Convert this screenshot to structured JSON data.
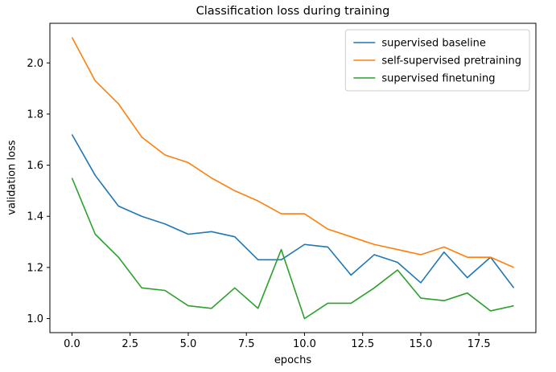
{
  "chart_data": {
    "type": "line",
    "title": "Classification loss during training",
    "xlabel": "epochs",
    "ylabel": "validation loss",
    "x": [
      0,
      1,
      2,
      3,
      4,
      5,
      6,
      7,
      8,
      9,
      10,
      11,
      12,
      13,
      14,
      15,
      16,
      17,
      18,
      19
    ],
    "series": [
      {
        "name": "supervised baseline",
        "color": "#1f77b4",
        "values": [
          1.72,
          1.56,
          1.44,
          1.4,
          1.37,
          1.33,
          1.34,
          1.32,
          1.23,
          1.23,
          1.29,
          1.28,
          1.17,
          1.25,
          1.22,
          1.14,
          1.26,
          1.16,
          1.24,
          1.12
        ]
      },
      {
        "name": "self-supervised pretraining",
        "color": "#ff7f0e",
        "values": [
          2.1,
          1.93,
          1.84,
          1.71,
          1.64,
          1.61,
          1.55,
          1.5,
          1.46,
          1.41,
          1.41,
          1.35,
          1.32,
          1.29,
          1.27,
          1.25,
          1.28,
          1.24,
          1.24,
          1.2
        ]
      },
      {
        "name": "supervised finetuning",
        "color": "#2ca02c",
        "values": [
          1.55,
          1.33,
          1.24,
          1.12,
          1.11,
          1.05,
          1.04,
          1.12,
          1.04,
          1.27,
          1.0,
          1.06,
          1.06,
          1.12,
          1.19,
          1.08,
          1.07,
          1.1,
          1.03,
          1.05
        ]
      }
    ],
    "xlim": [
      -0.95,
      19.95
    ],
    "ylim": [
      0.945,
      2.155
    ],
    "xticks": {
      "values": [
        0,
        2.5,
        5,
        7.5,
        10,
        12.5,
        15,
        17.5
      ],
      "labels": [
        "0.0",
        "2.5",
        "5.0",
        "7.5",
        "10.0",
        "12.5",
        "15.0",
        "17.5"
      ]
    },
    "yticks": {
      "values": [
        1.0,
        1.2,
        1.4,
        1.6,
        1.8,
        2.0
      ],
      "labels": [
        "1.0",
        "1.2",
        "1.4",
        "1.6",
        "1.8",
        "2.0"
      ]
    },
    "legend": {
      "position": "upper right"
    },
    "grid": false,
    "axes_color": "#000000",
    "legend_border_color": "#cccccc"
  }
}
